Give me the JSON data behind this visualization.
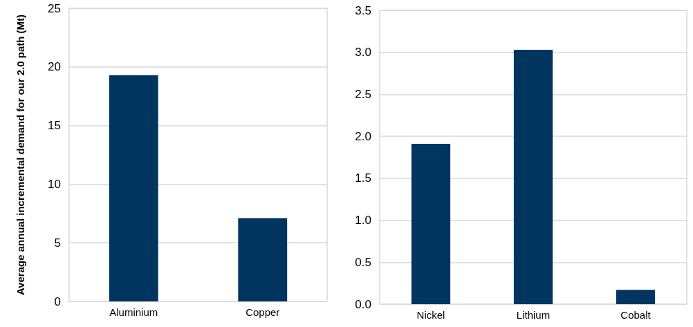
{
  "chart_data": [
    {
      "type": "bar",
      "ylabel": "Average annual incremental demand for our 2.0 path (Mt)",
      "categories": [
        "Aluminium",
        "Copper"
      ],
      "values": [
        19.3,
        7.1
      ],
      "color": "#003560",
      "ylim": [
        0,
        25
      ],
      "yticks": [
        0,
        5,
        10,
        15,
        20,
        25
      ],
      "grid": "y"
    },
    {
      "type": "bar",
      "categories": [
        "Nickel",
        "Lithium",
        "Cobalt"
      ],
      "values": [
        1.91,
        3.03,
        0.17
      ],
      "color": "#003560",
      "ylim": [
        0,
        3.5
      ],
      "yticks": [
        {
          "value": 0,
          "label": "0.0"
        },
        0.5,
        {
          "value": 1,
          "label": "1.0"
        },
        1.5,
        {
          "value": 2,
          "label": "2.0"
        },
        2.5,
        {
          "value": 3,
          "label": "3.0"
        },
        3.5
      ],
      "grid": "y"
    }
  ]
}
